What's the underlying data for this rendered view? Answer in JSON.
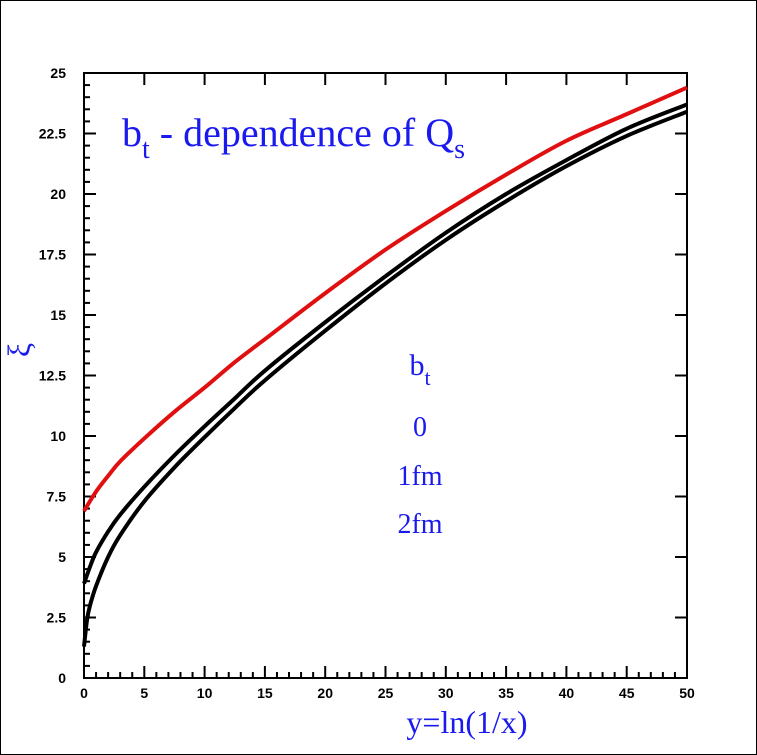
{
  "chart_data": {
    "type": "line",
    "title": "b",
    "title_sub": "t",
    "title_rest": " - dependence of Q",
    "title_sub2": "s",
    "xlabel": "y=ln(1/x)",
    "ylabel": "ξ",
    "xlim": [
      0,
      50
    ],
    "ylim": [
      0,
      25
    ],
    "x_ticks": [
      "0",
      "5",
      "10",
      "15",
      "20",
      "25",
      "30",
      "35",
      "40",
      "45",
      "50"
    ],
    "y_ticks": [
      "0",
      "2.5",
      "5",
      "7.5",
      "10",
      "12.5",
      "15",
      "17.5",
      "20",
      "22.5",
      "25"
    ],
    "legend": {
      "header": "b",
      "header_sub": "t",
      "entries": [
        "0",
        "1fm",
        "2fm"
      ]
    },
    "colors": {
      "red_curve": "#e01010",
      "black_curve": "#000000",
      "text": "#1a1aee"
    },
    "series": [
      {
        "color": "#e01010",
        "x": [
          0,
          1,
          2,
          3,
          5,
          7.5,
          10,
          12.5,
          15,
          20,
          25,
          30,
          35,
          40,
          45,
          50
        ],
        "y": [
          6.9,
          7.7,
          8.35,
          8.95,
          9.9,
          11.0,
          12.0,
          13.05,
          14.0,
          15.9,
          17.7,
          19.3,
          20.8,
          22.2,
          23.3,
          24.4
        ]
      },
      {
        "color": "#000000",
        "x": [
          0,
          0.5,
          1,
          2,
          3,
          5,
          7.5,
          10,
          12.5,
          15,
          20,
          25,
          30,
          35,
          40,
          45,
          50
        ],
        "y": [
          3.9,
          4.6,
          5.2,
          6.05,
          6.75,
          7.9,
          9.2,
          10.4,
          11.55,
          12.7,
          14.7,
          16.6,
          18.4,
          20.0,
          21.4,
          22.7,
          23.7
        ]
      },
      {
        "color": "#000000",
        "x": [
          0,
          0.25,
          0.5,
          1,
          2,
          3,
          5,
          7.5,
          10,
          12.5,
          15,
          20,
          25,
          30,
          35,
          40,
          45,
          50
        ],
        "y": [
          1.3,
          2.4,
          3.0,
          3.8,
          5.0,
          5.9,
          7.3,
          8.7,
          9.95,
          11.15,
          12.3,
          14.35,
          16.3,
          18.1,
          19.7,
          21.15,
          22.4,
          23.4
        ]
      }
    ]
  }
}
